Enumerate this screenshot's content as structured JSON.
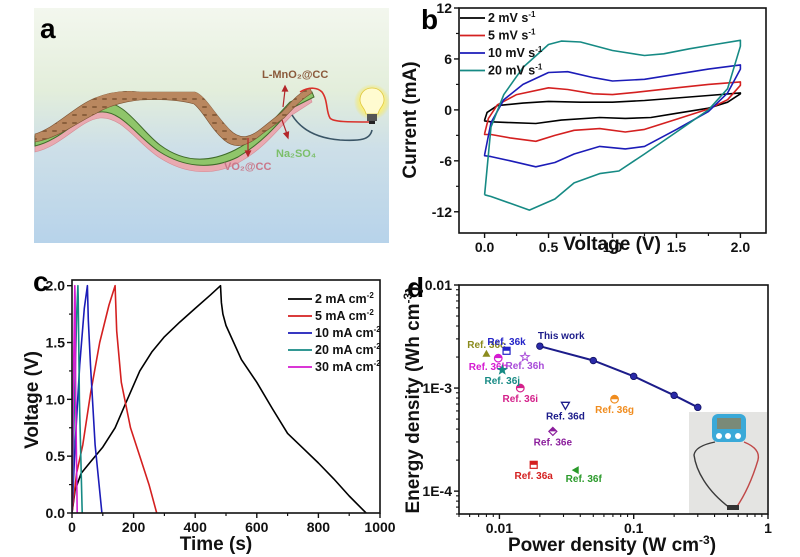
{
  "figure": {
    "panels": [
      "a",
      "b",
      "c",
      "d"
    ]
  },
  "panel_a": {
    "letter": "a",
    "labels": {
      "cathode": "L-MnO₂@CC",
      "electrolyte": "Na₂SO₄",
      "anode": "VO₂@CC"
    },
    "colors": {
      "cathode_label": "#8b5a3c",
      "electrolyte_label": "#7cbf6a",
      "anode_label": "#c9788a",
      "fabric_top": "#b78660",
      "fabric_bottom": "#e9a9b0",
      "gel": "#8fc56a",
      "wire_pos": "#d9302a",
      "wire_neg": "#3a5566",
      "bg_top": "#eef5e6",
      "bg_bottom": "#b9d5ea"
    }
  },
  "chart_data": [
    {
      "panel": "b",
      "type": "line",
      "title": "",
      "xlabel": "Voltage (V)",
      "ylabel": "Current (mA)",
      "xlim": [
        -0.2,
        2.2
      ],
      "ylim": [
        -14.5,
        12
      ],
      "xticks": [
        0.0,
        0.5,
        1.0,
        1.5,
        2.0
      ],
      "xtick_labels": [
        "0.0",
        "0.5",
        "1.0",
        "1.5",
        "2.0"
      ],
      "yticks": [
        -12,
        -6,
        0,
        6,
        12
      ],
      "ytick_labels": [
        "-12",
        "-6",
        "0",
        "6",
        "12"
      ],
      "legend_position": "top-left",
      "series": [
        {
          "name": "2 mV s⁻¹",
          "label_main": "2 mV s",
          "label_sup": "-1",
          "color": "#000000",
          "x": [
            0.0,
            0.02,
            0.1,
            0.3,
            0.5,
            0.75,
            1.0,
            1.25,
            1.5,
            1.75,
            2.0,
            2.0,
            1.9,
            1.75,
            1.5,
            1.3,
            1.1,
            0.9,
            0.6,
            0.4,
            0.2,
            0.05,
            0.0,
            0.0
          ],
          "y": [
            -1.2,
            -0.3,
            0.5,
            0.8,
            1.0,
            0.9,
            0.9,
            1.1,
            1.4,
            1.7,
            2.0,
            1.9,
            0.9,
            0.2,
            -0.4,
            -0.9,
            -1.0,
            -0.9,
            -1.2,
            -1.6,
            -1.5,
            -1.4,
            -1.3,
            -1.2
          ]
        },
        {
          "name": "5 mV s⁻¹",
          "label_main": "5 mV s",
          "label_sup": "-1",
          "color": "#d42020",
          "x": [
            0.0,
            0.03,
            0.1,
            0.25,
            0.5,
            0.65,
            0.85,
            1.0,
            1.2,
            1.5,
            1.75,
            2.0,
            2.0,
            1.9,
            1.75,
            1.5,
            1.25,
            1.1,
            0.9,
            0.7,
            0.55,
            0.4,
            0.2,
            0.05,
            0.0,
            0.0
          ],
          "y": [
            -2.8,
            -1.0,
            0.6,
            1.8,
            2.6,
            2.4,
            1.9,
            1.8,
            2.1,
            2.6,
            3.0,
            3.3,
            2.9,
            1.2,
            0.1,
            -1.1,
            -2.3,
            -2.6,
            -2.2,
            -2.4,
            -3.0,
            -3.7,
            -3.3,
            -2.9,
            -2.9,
            -2.8
          ]
        },
        {
          "name": "10 mV s⁻¹",
          "label_main": "10 mV s",
          "label_sup": "-1",
          "color": "#1c1cb8",
          "x": [
            0.0,
            0.05,
            0.15,
            0.3,
            0.5,
            0.65,
            0.85,
            1.0,
            1.25,
            1.5,
            1.75,
            2.0,
            2.0,
            1.9,
            1.75,
            1.5,
            1.25,
            1.1,
            0.9,
            0.7,
            0.55,
            0.4,
            0.2,
            0.05,
            0.0,
            0.0
          ],
          "y": [
            -5.3,
            -1.5,
            1.2,
            3.0,
            4.4,
            4.5,
            3.8,
            3.4,
            3.6,
            4.2,
            4.8,
            5.3,
            4.8,
            2.0,
            -0.2,
            -2.3,
            -4.3,
            -4.6,
            -4.3,
            -5.2,
            -6.2,
            -6.7,
            -6.0,
            -5.5,
            -5.4,
            -5.3
          ]
        },
        {
          "name": "20 mV s⁻¹",
          "label_main": "20 mV s",
          "label_sup": "-1",
          "color": "#168a84",
          "x": [
            0.0,
            0.05,
            0.15,
            0.3,
            0.5,
            0.6,
            0.75,
            1.0,
            1.25,
            1.4,
            1.6,
            1.8,
            2.0,
            2.0,
            1.9,
            1.75,
            1.5,
            1.25,
            1.05,
            0.9,
            0.7,
            0.55,
            0.35,
            0.2,
            0.05,
            0.0,
            0.0
          ],
          "y": [
            -10.0,
            -2.0,
            1.8,
            5.0,
            7.7,
            8.1,
            8.0,
            7.0,
            6.4,
            6.6,
            7.2,
            7.7,
            8.2,
            7.5,
            2.5,
            0.0,
            -2.6,
            -5.2,
            -7.2,
            -7.5,
            -8.6,
            -10.5,
            -11.8,
            -11.0,
            -10.2,
            -10.0,
            -10.0
          ]
        }
      ]
    },
    {
      "panel": "c",
      "type": "line",
      "title": "",
      "xlabel": "Time (s)",
      "ylabel": "Voltage (V)",
      "xlim": [
        0,
        1000
      ],
      "ylim": [
        0.0,
        2.05
      ],
      "xticks": [
        0,
        200,
        400,
        600,
        800,
        1000
      ],
      "xtick_labels": [
        "0",
        "200",
        "400",
        "600",
        "800",
        "1000"
      ],
      "yticks": [
        0.0,
        0.5,
        1.0,
        1.5,
        2.0
      ],
      "ytick_labels": [
        "0.0",
        "0.5",
        "1.0",
        "1.5",
        "2.0"
      ],
      "legend_position": "top-right",
      "series": [
        {
          "name": "2 mA cm⁻²",
          "label_main": "2 mA cm",
          "label_sup": "-2",
          "color": "#000000",
          "x": [
            0,
            10,
            30,
            60,
            100,
            140,
            180,
            220,
            260,
            300,
            350,
            400,
            450,
            482,
            485,
            490,
            500,
            550,
            600,
            650,
            700,
            750,
            800,
            850,
            900,
            955
          ],
          "y": [
            0.0,
            0.2,
            0.35,
            0.45,
            0.58,
            0.75,
            1.0,
            1.25,
            1.42,
            1.55,
            1.68,
            1.8,
            1.92,
            2.0,
            1.85,
            1.75,
            1.65,
            1.35,
            1.15,
            0.92,
            0.7,
            0.57,
            0.44,
            0.3,
            0.15,
            0.0
          ]
        },
        {
          "name": "5 mA cm⁻²",
          "label_main": "5 mA cm",
          "label_sup": "-2",
          "color": "#d42020",
          "x": [
            0,
            15,
            35,
            60,
            90,
            120,
            140,
            145,
            160,
            190,
            220,
            250,
            275
          ],
          "y": [
            0.0,
            0.35,
            0.6,
            1.05,
            1.5,
            1.83,
            2.0,
            1.6,
            1.15,
            0.75,
            0.5,
            0.25,
            0.0
          ]
        },
        {
          "name": "10 mA cm⁻²",
          "label_main": "10 mA cm",
          "label_sup": "-2",
          "color": "#1c1cb8",
          "x": [
            0,
            10,
            25,
            40,
            50,
            53,
            60,
            75,
            97
          ],
          "y": [
            0.0,
            0.6,
            1.3,
            1.8,
            2.0,
            1.7,
            1.3,
            0.6,
            0.0
          ]
        },
        {
          "name": "20 mA cm⁻²",
          "label_main": "20 mA cm",
          "label_sup": "-2",
          "color": "#168a84",
          "x": [
            0,
            8,
            16,
            19,
            20,
            24,
            33
          ],
          "y": [
            0.0,
            1.0,
            1.8,
            2.0,
            1.9,
            1.0,
            0.0
          ]
        },
        {
          "name": "30 mA cm⁻²",
          "label_main": "30 mA cm",
          "label_sup": "-2",
          "color": "#d51ad1",
          "x": [
            0,
            4,
            9,
            10,
            12,
            17
          ],
          "y": [
            0.0,
            1.0,
            2.0,
            1.9,
            1.0,
            0.0
          ]
        }
      ]
    },
    {
      "panel": "d",
      "type": "scatter",
      "title": "",
      "xlabel": "Power density (W cm⁻³)",
      "xlabel_main": "Power density (W cm",
      "xlabel_sup": "-3",
      "xlabel_end": ")",
      "ylabel": "Energy density (Wh cm⁻³)",
      "ylabel_main": "Energy density (Wh cm",
      "ylabel_sup": "-3",
      "ylabel_end": ")",
      "xscale": "log",
      "yscale": "log",
      "xlim": [
        0.005,
        1
      ],
      "ylim": [
        6e-05,
        0.01
      ],
      "xticks": [
        0.01,
        0.1,
        1
      ],
      "xtick_labels": [
        "0.01",
        "0.1",
        "1"
      ],
      "yticks": [
        0.0001,
        0.001,
        0.01
      ],
      "ytick_labels": [
        "1E-4",
        "1E-3",
        "0.01"
      ],
      "this_work": {
        "name": "This work",
        "color": "#1c1c8a",
        "x": [
          0.02,
          0.05,
          0.1,
          0.2,
          0.3
        ],
        "y": [
          0.00255,
          0.00185,
          0.0013,
          0.00085,
          0.00065
        ]
      },
      "references": [
        {
          "name": "Ref. 36a",
          "x": 0.018,
          "y": 0.00018,
          "color": "#d42020",
          "marker": "square-half"
        },
        {
          "name": "Ref. 36b",
          "x": 0.0098,
          "y": 0.00195,
          "color": "#d51ad1",
          "marker": "circle-half"
        },
        {
          "name": "Ref. 36c",
          "x": 0.008,
          "y": 0.00215,
          "color": "#8b8b1e",
          "marker": "triangle-up"
        },
        {
          "name": "Ref. 36d",
          "x": 0.031,
          "y": 0.00068,
          "color": "#1c1c8a",
          "marker": "triangle-down"
        },
        {
          "name": "Ref. 36e",
          "x": 0.025,
          "y": 0.00038,
          "color": "#8b1e9c",
          "marker": "diamond-half"
        },
        {
          "name": "Ref. 36f",
          "x": 0.037,
          "y": 0.00016,
          "color": "#2a9a2a",
          "marker": "triangle-left"
        },
        {
          "name": "Ref. 36g",
          "x": 0.072,
          "y": 0.00078,
          "color": "#f08c1e",
          "marker": "circle-half"
        },
        {
          "name": "Ref. 36h",
          "x": 0.0155,
          "y": 0.002,
          "color": "#a84ad8",
          "marker": "star-outline"
        },
        {
          "name": "Ref. 36i",
          "x": 0.0143,
          "y": 0.001,
          "color": "#d4208a",
          "marker": "circle-half"
        },
        {
          "name": "Ref. 36j",
          "x": 0.0105,
          "y": 0.0015,
          "color": "#168a84",
          "marker": "star"
        },
        {
          "name": "Ref. 36k",
          "x": 0.0113,
          "y": 0.0023,
          "color": "#2424c8",
          "marker": "square-half"
        }
      ],
      "inset": "photo of device powering a digital timer"
    }
  ],
  "panel_letters": {
    "b": "b",
    "c": "c",
    "d": "d"
  }
}
